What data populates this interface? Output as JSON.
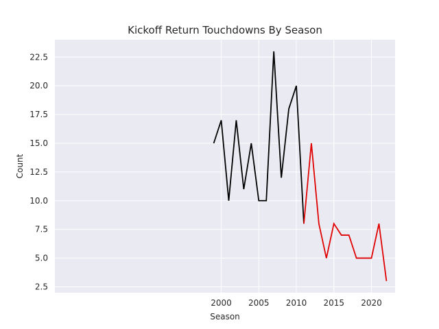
{
  "chart_data": {
    "type": "line",
    "title": "Kickoff Return Touchdowns By Season",
    "xlabel": "Season",
    "ylabel": "Count",
    "xlim": [
      1977.85,
      2023.15
    ],
    "ylim": [
      1.99,
      24.01
    ],
    "x_ticks": [
      2000,
      2005,
      2010,
      2015,
      2020
    ],
    "y_ticks": [
      2.5,
      5.0,
      7.5,
      10.0,
      12.5,
      15.0,
      17.5,
      20.0,
      22.5
    ],
    "grid": true,
    "legend": "none",
    "series": [
      {
        "color": "#000000",
        "points": [
          {
            "x": 1999,
            "y": 15
          },
          {
            "x": 2000,
            "y": 17
          },
          {
            "x": 2001,
            "y": 10
          },
          {
            "x": 2002,
            "y": 17
          },
          {
            "x": 2003,
            "y": 11
          },
          {
            "x": 2004,
            "y": 15
          },
          {
            "x": 2005,
            "y": 10
          },
          {
            "x": 2006,
            "y": 10
          },
          {
            "x": 2007,
            "y": 23
          },
          {
            "x": 2008,
            "y": 12
          },
          {
            "x": 2009,
            "y": 18
          },
          {
            "x": 2010,
            "y": 20
          },
          {
            "x": 2011,
            "y": 8
          }
        ]
      },
      {
        "color": "#e00000",
        "points": [
          {
            "x": 2011,
            "y": 8
          },
          {
            "x": 2012,
            "y": 15
          },
          {
            "x": 2013,
            "y": 8
          },
          {
            "x": 2014,
            "y": 5
          },
          {
            "x": 2015,
            "y": 8
          },
          {
            "x": 2016,
            "y": 7
          },
          {
            "x": 2017,
            "y": 7
          },
          {
            "x": 2018,
            "y": 5
          },
          {
            "x": 2019,
            "y": 5
          },
          {
            "x": 2020,
            "y": 5
          },
          {
            "x": 2021,
            "y": 8
          },
          {
            "x": 2022,
            "y": 3
          }
        ]
      }
    ]
  },
  "style": {
    "plot_background": "#eaeaf2",
    "grid_color": "#ffffff"
  }
}
